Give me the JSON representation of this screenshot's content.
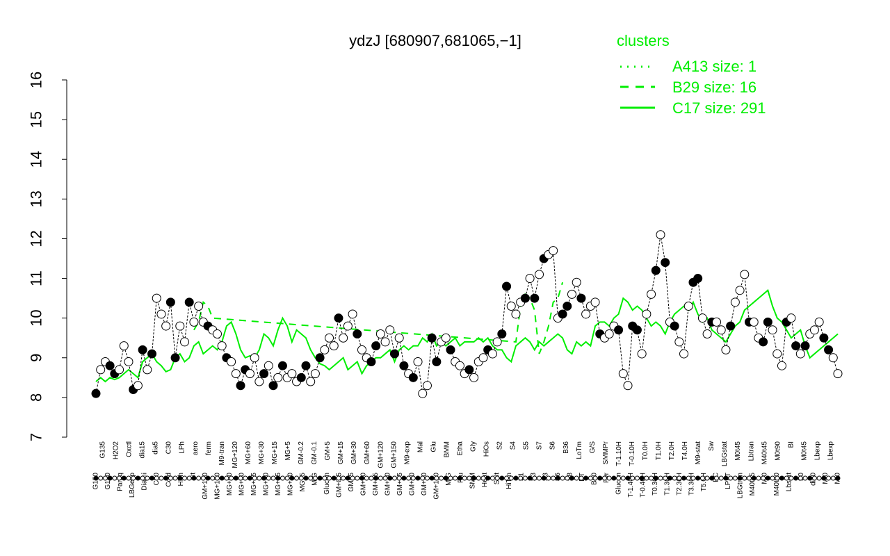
{
  "chart_data": {
    "type": "line",
    "title": "ydzJ [680907,681065,−1]",
    "xlabel": "",
    "ylabel": "",
    "ylim": [
      7,
      16
    ],
    "yticks": [
      7,
      8,
      9,
      10,
      11,
      12,
      13,
      14,
      15,
      16
    ],
    "grid": false,
    "legend_position": "top-right",
    "legend": {
      "title": "clusters",
      "entries": [
        {
          "label": "A413 size: 1",
          "style": "dotted"
        },
        {
          "label": "B29 size: 16",
          "style": "dashed"
        },
        {
          "label": "C17 size: 291",
          "style": "solid"
        }
      ]
    },
    "tick_labels_lower": [
      "G150",
      "G180",
      "Paraq",
      "LBGexp",
      "Diami",
      "C90",
      "Cold",
      "HPh",
      "nit",
      "GM+150",
      "MG+150",
      "MG+90",
      "MG+60",
      "MG+45",
      "MG+30",
      "MG+15",
      "MG+10",
      "MG+5",
      "M/G",
      "Glucon",
      "GM+0.5",
      "GM+5",
      "GM+10",
      "GM+15",
      "GM+30",
      "GM+45",
      "GM+60",
      "GM+90",
      "GM+120",
      "M/G",
      "Fru",
      "SMM",
      "Heat",
      "Salt",
      "HiTm",
      "S1",
      "S3",
      "S3",
      "S6",
      "S8",
      "BT",
      "B60",
      "Pyr",
      "Glucon",
      "T-1.40H",
      "T-0.40H",
      "T0.30H",
      "T1.30H",
      "T2.30H",
      "T3.30H",
      "T5.0H",
      "BC",
      "LPhT",
      "LBGtran",
      "M40t45",
      "Mt0",
      "M40t90",
      "Lbstat",
      "S0",
      "dia0",
      "Mt0",
      "Mt0"
    ],
    "tick_labels_upper": [
      "G135",
      "H2O2",
      "Oxctl",
      "dia15",
      "dia5",
      "C30",
      "LPh",
      "aero",
      "ferm",
      "M9-tran",
      "MG+120",
      "MG+60",
      "MG+30",
      "MG+15",
      "MG+5",
      "GM-0.2",
      "GM-0.1",
      "GM+5",
      "GM+15",
      "GM+30",
      "GM+60",
      "GM+120",
      "GM+150",
      "M9-exp",
      "Mal",
      "Glu",
      "BMM",
      "Etha",
      "Gly",
      "HiOs",
      "S2",
      "S4",
      "S5",
      "S7",
      "S6",
      "B36",
      "LoTm",
      "G/S",
      "SMMPr",
      "T-1.10H",
      "T-0.10H",
      "T0.0H",
      "T1.0H",
      "T2.0H",
      "T4.0H",
      "M9-stat",
      "Sw",
      "LBGstat",
      "M0t45",
      "Lbtran",
      "M40t45",
      "M0t90",
      "BI",
      "M0t45",
      "Lbexp",
      "Lbexp"
    ],
    "series": [
      {
        "name": "C17 size: 291",
        "style": "solid",
        "x": [
          1,
          2,
          3,
          4,
          5,
          6,
          7,
          8,
          9,
          10,
          11,
          12,
          13,
          14,
          15,
          16,
          17,
          18,
          19,
          20,
          21,
          22,
          23,
          24,
          25,
          26,
          27,
          28,
          29,
          30,
          31,
          32,
          33,
          34,
          35,
          36,
          37,
          38,
          39,
          40,
          41,
          42,
          43,
          44,
          45,
          46,
          47,
          48,
          49,
          50,
          51,
          52,
          53,
          54,
          55,
          56,
          57,
          58,
          59,
          60,
          61,
          62,
          63,
          64,
          65,
          66,
          67,
          68,
          69,
          70,
          71,
          72,
          73,
          74,
          75,
          76,
          77,
          78,
          79,
          80,
          81,
          82,
          83,
          84,
          85,
          86,
          87,
          88,
          89,
          90,
          91,
          92,
          93,
          94,
          95,
          96,
          97,
          98,
          99,
          100,
          101,
          102,
          103,
          104,
          105,
          106,
          107,
          108,
          109,
          110,
          111,
          112,
          113,
          114,
          115,
          116,
          117,
          118,
          119,
          120,
          121,
          122,
          123,
          124,
          125,
          126,
          127,
          128,
          129,
          130,
          131,
          132,
          133,
          134,
          135,
          136,
          137,
          138,
          139,
          140,
          141,
          142,
          143,
          144,
          145,
          146,
          147,
          148,
          149,
          150,
          151,
          152,
          153,
          154,
          155,
          156,
          157,
          158,
          159,
          160
        ],
        "y": [
          8.4,
          8.5,
          8.4,
          8.5,
          8.45,
          8.5,
          8.6,
          8.7,
          8.6,
          8.5,
          8.9,
          9.0,
          9.1,
          8.9,
          8.8,
          8.65,
          8.7,
          9.0,
          9.1,
          8.9,
          9.0,
          9.3,
          9.4,
          9.1,
          9.2,
          9.3,
          9.2,
          9.4,
          9.8,
          9.9,
          9.6,
          9.2,
          9.0,
          9.05,
          9.0,
          9.2,
          9.6,
          9.5,
          9.3,
          9.7,
          10.0,
          9.8,
          9.4,
          9.7,
          9.6,
          9.5,
          9.2,
          9.0,
          8.85,
          8.8,
          8.7,
          8.8,
          8.9,
          9.0,
          8.7,
          8.8,
          8.9,
          8.6,
          8.8,
          8.9,
          9.0,
          9.0,
          9.1,
          9.2,
          8.9,
          9.2,
          9.3,
          9.2,
          9.3,
          9.3,
          9.5,
          9.4,
          9.6,
          9.3,
          9.4,
          9.3,
          9.4,
          9.5,
          9.3,
          9.4,
          9.4,
          9.4,
          9.5,
          9.4,
          9.5,
          9.3,
          9.2,
          9.2,
          9.0,
          8.9,
          9.3,
          9.4,
          9.5,
          9.4,
          9.2,
          9.4,
          9.3,
          9.4,
          9.5,
          9.6,
          9.5,
          9.2,
          9.1,
          9.4,
          9.3,
          9.4,
          9.3,
          9.8,
          9.9,
          9.9,
          9.8,
          10.0,
          10.1,
          10.5,
          10.4,
          10.2,
          10.3,
          10.2,
          10.0,
          9.8,
          9.9,
          9.8,
          9.6,
          9.9,
          10.1,
          10.2,
          10.3,
          10.2,
          10.4,
          10.1,
          9.9,
          10.0,
          9.7,
          9.6,
          9.5,
          9.4,
          9.6,
          9.8,
          9.9,
          10.2,
          10.3,
          10.4,
          10.5,
          10.6,
          10.7,
          10.3,
          10.0,
          9.9,
          9.7,
          9.5,
          9.6,
          9.7,
          9.3,
          9.0,
          9.1,
          9.2,
          9.3,
          9.4,
          9.5,
          9.6
        ]
      },
      {
        "name": "B29 size: 16",
        "style": "dashed",
        "x": [
          22,
          23,
          24,
          25,
          26,
          91,
          92,
          93,
          94,
          95,
          96,
          97,
          98,
          99,
          100,
          101
        ],
        "y": [
          9.7,
          9.9,
          10.4,
          10.3,
          10.0,
          9.4,
          10.3,
          10.6,
          10.5,
          10.2,
          9.1,
          9.4,
          9.8,
          10.4,
          10.5,
          10.9
        ]
      },
      {
        "name": "A413 size: 1",
        "style": "dotted",
        "x": [],
        "y": []
      }
    ],
    "points_x": [
      1,
      2,
      3,
      4,
      5,
      6,
      7,
      8,
      9,
      10,
      11,
      12,
      13,
      14,
      15,
      16,
      17,
      18,
      19,
      20,
      21,
      22,
      23,
      24,
      25,
      26,
      27,
      28,
      29,
      30,
      31,
      32,
      33,
      34,
      35,
      36,
      37,
      38,
      39,
      40,
      41,
      42,
      43,
      44,
      45,
      46,
      47,
      48,
      49,
      50,
      51,
      52,
      53,
      54,
      55,
      56,
      57,
      58,
      59,
      60,
      61,
      62,
      63,
      64,
      65,
      66,
      67,
      68,
      69,
      70,
      71,
      72,
      73,
      74,
      75,
      76,
      77,
      78,
      79,
      80,
      81,
      82,
      83,
      84,
      85,
      86,
      87,
      88,
      89,
      90,
      91,
      92,
      93,
      94,
      95,
      96,
      97,
      98,
      99,
      100,
      101,
      102,
      103,
      104,
      105,
      106,
      107,
      108,
      109,
      110,
      111,
      112,
      113,
      114,
      115,
      116,
      117,
      118,
      119,
      120,
      121,
      122,
      123,
      124,
      125,
      126,
      127,
      128,
      129,
      130,
      131,
      132,
      133,
      134,
      135,
      136,
      137,
      138,
      139,
      140,
      141,
      142,
      143,
      144,
      145,
      146,
      147,
      148,
      149,
      150,
      151,
      152,
      153,
      154,
      155,
      156,
      157,
      158,
      159,
      160
    ],
    "points_y": [
      8.1,
      8.7,
      8.9,
      8.8,
      8.6,
      8.7,
      9.3,
      8.9,
      8.2,
      8.3,
      9.2,
      8.7,
      9.1,
      10.5,
      10.1,
      9.8,
      10.4,
      9.0,
      9.8,
      9.4,
      10.4,
      9.9,
      10.3,
      9.9,
      9.8,
      9.7,
      9.6,
      9.3,
      9.0,
      8.9,
      8.6,
      8.3,
      8.7,
      8.6,
      9.0,
      8.4,
      8.6,
      8.8,
      8.3,
      8.5,
      8.8,
      8.5,
      8.6,
      8.4,
      8.5,
      8.8,
      8.4,
      8.6,
      9.0,
      9.2,
      9.5,
      9.3,
      10.0,
      9.5,
      9.8,
      10.1,
      9.6,
      9.2,
      9.0,
      8.9,
      9.3,
      9.6,
      9.4,
      9.7,
      9.1,
      9.5,
      8.8,
      8.6,
      8.5,
      8.9,
      8.1,
      8.3,
      9.5,
      8.9,
      9.4,
      9.5,
      9.2,
      8.9,
      8.8,
      8.6,
      8.7,
      8.5,
      8.9,
      9.0,
      9.2,
      9.1,
      9.4,
      9.6,
      10.8,
      10.3,
      10.1,
      10.4,
      10.5,
      11.0,
      10.5,
      11.1,
      11.5,
      11.6,
      11.7,
      10.0,
      10.1,
      10.3,
      10.6,
      10.9,
      10.5,
      10.1,
      10.3,
      10.4,
      9.6,
      9.5,
      9.6,
      9.8,
      9.7,
      8.6,
      8.3,
      9.8,
      9.7,
      9.1,
      10.1,
      10.6,
      11.2,
      12.1,
      11.4,
      9.9,
      9.8,
      9.4,
      9.1,
      10.3,
      10.9,
      11.0,
      10.0,
      9.6,
      9.9,
      9.9,
      9.7,
      9.2,
      9.8,
      10.4,
      10.7,
      11.1,
      9.9,
      9.9,
      9.5,
      9.4,
      9.9,
      9.7,
      9.1,
      8.8,
      9.9,
      10.0,
      9.3,
      9.1,
      9.3,
      9.6,
      9.7,
      9.9,
      9.5,
      9.2,
      9.0,
      8.6
    ]
  }
}
